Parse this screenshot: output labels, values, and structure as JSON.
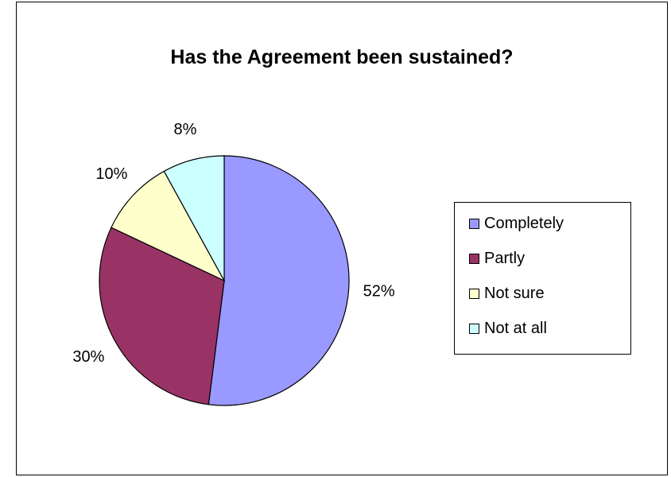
{
  "chart_data": {
    "type": "pie",
    "title": "Has the Agreement been sustained?",
    "categories": [
      "Completely",
      "Partly",
      "Not sure",
      "Not at all"
    ],
    "values": [
      52,
      30,
      10,
      8
    ],
    "labels": [
      "52%",
      "30%",
      "10%",
      "8%"
    ],
    "colors": [
      "#9999ff",
      "#993366",
      "#ffffcc",
      "#ccffff"
    ],
    "legend": "right"
  }
}
